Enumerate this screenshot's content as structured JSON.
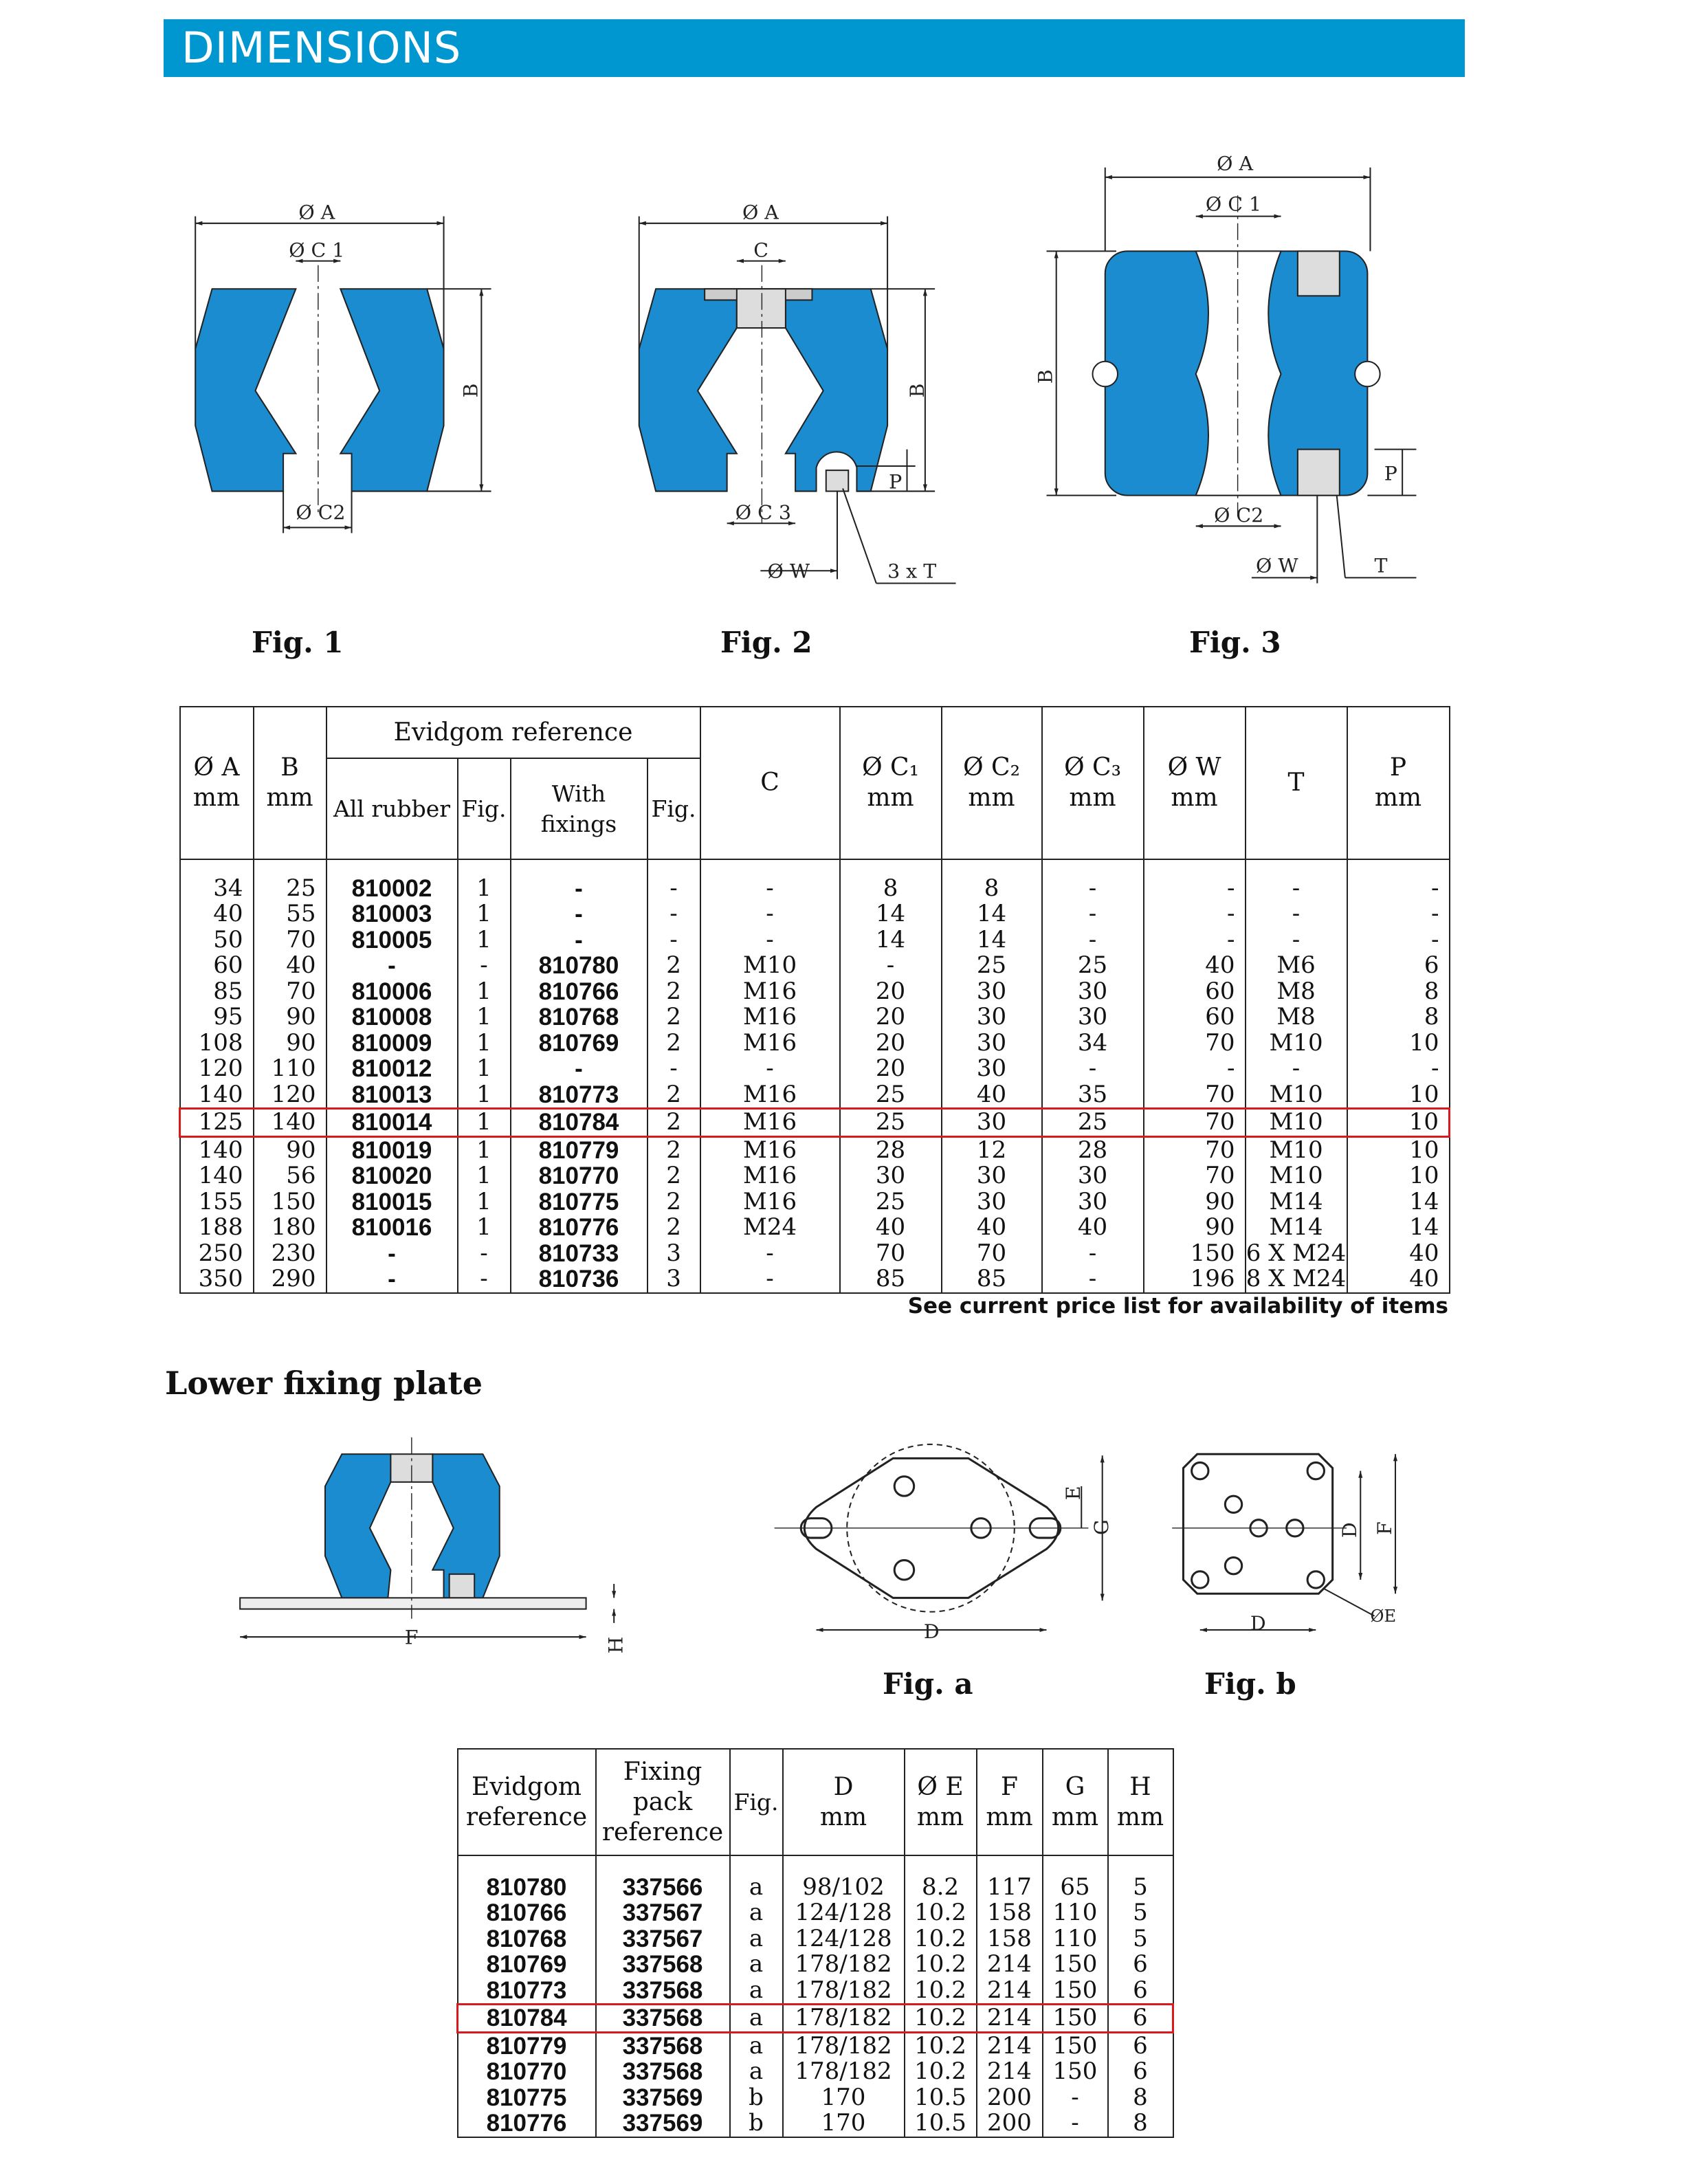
{
  "header": {
    "title": "DIMENSIONS"
  },
  "colors": {
    "header_blue": "#0096d0",
    "rubber_blue": "#1b8ccf",
    "highlight_red": "#d9191c"
  },
  "figures": {
    "fig1": {
      "label": "Fig. 1",
      "dims": {
        "a": "Ø A",
        "c1": "Ø C 1",
        "b": "B",
        "c2": "Ø C2"
      }
    },
    "fig2": {
      "label": "Fig. 2",
      "dims": {
        "a": "Ø A",
        "c": "C",
        "b": "B",
        "p": "P",
        "c3": "Ø C 3",
        "w": "Ø W",
        "t": "3 x T"
      }
    },
    "fig3": {
      "label": "Fig. 3",
      "dims": {
        "a": "Ø A",
        "c1": "Ø C 1",
        "b": "B",
        "p": "P",
        "c2": "Ø C2",
        "w": "Ø W",
        "t": "T"
      }
    }
  },
  "table1": {
    "headers": {
      "a": "Ø A",
      "a_unit": "mm",
      "b": "B",
      "b_unit": "mm",
      "evidgom": "Evidgom reference",
      "all_rubber": "All rubber",
      "fig": "Fig.",
      "with_fixings": "With fixings",
      "fig2": "Fig.",
      "c": "C",
      "c1": "Ø C₁",
      "c1_unit": "mm",
      "c2": "Ø C₂",
      "c2_unit": "mm",
      "c3": "Ø C₃",
      "c3_unit": "mm",
      "w": "Ø W",
      "w_unit": "mm",
      "t": "T",
      "p": "P",
      "p_unit": "mm"
    },
    "rows": [
      [
        "34",
        "25",
        "810002",
        "1",
        "-",
        "-",
        "-",
        "8",
        "8",
        "-",
        "-",
        "-",
        "-"
      ],
      [
        "40",
        "55",
        "810003",
        "1",
        "-",
        "-",
        "-",
        "14",
        "14",
        "-",
        "-",
        "-",
        "-"
      ],
      [
        "50",
        "70",
        "810005",
        "1",
        "-",
        "-",
        "-",
        "14",
        "14",
        "-",
        "-",
        "-",
        "-"
      ],
      [
        "60",
        "40",
        "-",
        "-",
        "810780",
        "2",
        "M10",
        "-",
        "25",
        "25",
        "40",
        "M6",
        "6"
      ],
      [
        "85",
        "70",
        "810006",
        "1",
        "810766",
        "2",
        "M16",
        "20",
        "30",
        "30",
        "60",
        "M8",
        "8"
      ],
      [
        "95",
        "90",
        "810008",
        "1",
        "810768",
        "2",
        "M16",
        "20",
        "30",
        "30",
        "60",
        "M8",
        "8"
      ],
      [
        "108",
        "90",
        "810009",
        "1",
        "810769",
        "2",
        "M16",
        "20",
        "30",
        "34",
        "70",
        "M10",
        "10"
      ],
      [
        "120",
        "110",
        "810012",
        "1",
        "-",
        "-",
        "-",
        "20",
        "30",
        "-",
        "-",
        "-",
        "-"
      ],
      [
        "140",
        "120",
        "810013",
        "1",
        "810773",
        "2",
        "M16",
        "25",
        "40",
        "35",
        "70",
        "M10",
        "10"
      ],
      [
        "125",
        "140",
        "810014",
        "1",
        "810784",
        "2",
        "M16",
        "25",
        "30",
        "25",
        "70",
        "M10",
        "10"
      ],
      [
        "140",
        "90",
        "810019",
        "1",
        "810779",
        "2",
        "M16",
        "28",
        "12",
        "28",
        "70",
        "M10",
        "10"
      ],
      [
        "140",
        "56",
        "810020",
        "1",
        "810770",
        "2",
        "M16",
        "30",
        "30",
        "30",
        "70",
        "M10",
        "10"
      ],
      [
        "155",
        "150",
        "810015",
        "1",
        "810775",
        "2",
        "M16",
        "25",
        "30",
        "30",
        "90",
        "M14",
        "14"
      ],
      [
        "188",
        "180",
        "810016",
        "1",
        "810776",
        "2",
        "M24",
        "40",
        "40",
        "40",
        "90",
        "M14",
        "14"
      ],
      [
        "250",
        "230",
        "-",
        "-",
        "810733",
        "3",
        "-",
        "70",
        "70",
        "-",
        "150",
        "6 X M24",
        "40"
      ],
      [
        "350",
        "290",
        "-",
        "-",
        "810736",
        "3",
        "-",
        "85",
        "85",
        "-",
        "196",
        "8 X M24",
        "40"
      ]
    ],
    "highlighted_row": 9,
    "note": "See current price list for availability of items"
  },
  "lower": {
    "title": "Lower fixing plate",
    "plate_dims": {
      "f": "F",
      "h": "H"
    },
    "figa": {
      "label": "Fig. a",
      "dims": {
        "e": "E",
        "g": "G",
        "d": "D"
      }
    },
    "figb": {
      "label": "Fig. b",
      "dims": {
        "d_h": "D",
        "d_v": "D",
        "f": "F",
        "e": "ØE"
      }
    }
  },
  "table2": {
    "headers": {
      "evidgom": "Evidgom reference",
      "fixing": "Fixing pack reference",
      "fig": "Fig.",
      "d": "D",
      "d_unit": "mm",
      "e": "Ø E",
      "e_unit": "mm",
      "f": "F",
      "f_unit": "mm",
      "g": "G",
      "g_unit": "mm",
      "h": "H",
      "h_unit": "mm"
    },
    "rows": [
      [
        "810780",
        "337566",
        "a",
        "98/102",
        "8.2",
        "117",
        "65",
        "5"
      ],
      [
        "810766",
        "337567",
        "a",
        "124/128",
        "10.2",
        "158",
        "110",
        "5"
      ],
      [
        "810768",
        "337567",
        "a",
        "124/128",
        "10.2",
        "158",
        "110",
        "5"
      ],
      [
        "810769",
        "337568",
        "a",
        "178/182",
        "10.2",
        "214",
        "150",
        "6"
      ],
      [
        "810773",
        "337568",
        "a",
        "178/182",
        "10.2",
        "214",
        "150",
        "6"
      ],
      [
        "810784",
        "337568",
        "a",
        "178/182",
        "10.2",
        "214",
        "150",
        "6"
      ],
      [
        "810779",
        "337568",
        "a",
        "178/182",
        "10.2",
        "214",
        "150",
        "6"
      ],
      [
        "810770",
        "337568",
        "a",
        "178/182",
        "10.2",
        "214",
        "150",
        "6"
      ],
      [
        "810775",
        "337569",
        "b",
        "170",
        "10.5",
        "200",
        "-",
        "8"
      ],
      [
        "810776",
        "337569",
        "b",
        "170",
        "10.5",
        "200",
        "-",
        "8"
      ]
    ],
    "highlighted_row": 5
  }
}
